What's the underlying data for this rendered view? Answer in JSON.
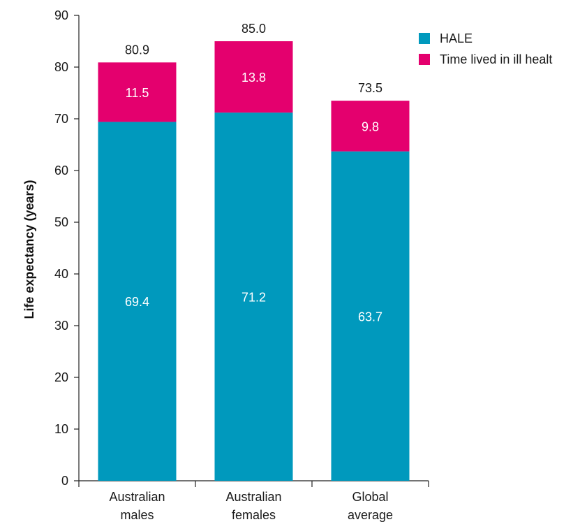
{
  "chart_data": {
    "type": "bar",
    "stacked": true,
    "categories": [
      [
        "Australian",
        "males"
      ],
      [
        "Australian",
        "females"
      ],
      [
        "Global",
        "average"
      ]
    ],
    "series": [
      {
        "name": "HALE",
        "values": [
          69.4,
          71.2,
          63.7
        ],
        "labels": [
          "69.4",
          "71.2",
          "63.7"
        ],
        "color": "#0099bd"
      },
      {
        "name": "Time lived in ill healt",
        "values": [
          11.5,
          13.8,
          9.8
        ],
        "labels": [
          "11.5",
          "13.8",
          "9.8"
        ],
        "color": "#e4006e"
      }
    ],
    "totals": [
      80.9,
      85.0,
      73.5
    ],
    "total_labels": [
      "80.9",
      "85.0",
      "73.5"
    ],
    "title": "",
    "xlabel": "",
    "ylabel": "Life expectancy (years)",
    "ylim": [
      0,
      90
    ],
    "yticks": [
      0,
      10,
      20,
      30,
      40,
      50,
      60,
      70,
      80,
      90
    ],
    "grid": false,
    "legend_position": "top-right"
  }
}
